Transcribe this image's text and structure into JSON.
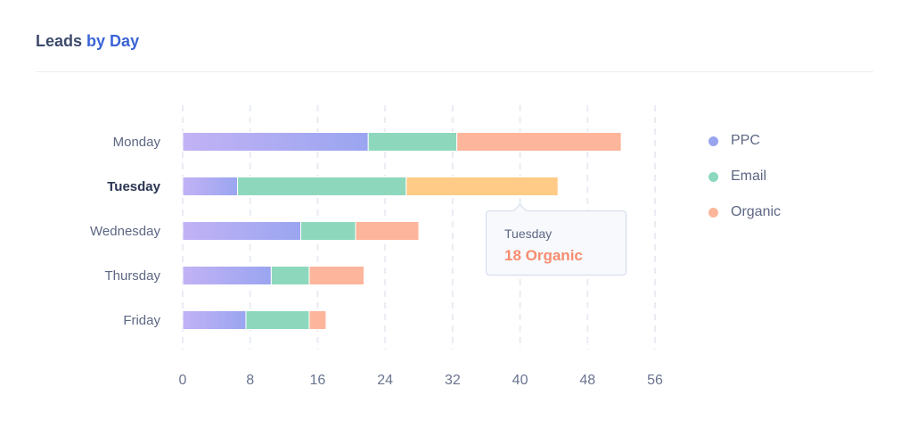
{
  "header": {
    "title_prefix": "Leads",
    "title_suffix": "by Day"
  },
  "colors": {
    "ppc": "#9aa5f0",
    "ppc_start": "#c2b2f5",
    "email": "#8dd8bd",
    "organic": "#fdb59b",
    "organic_highlight": "#ffcb87",
    "axis_text": "#6a7490",
    "label_text": "#5d6783",
    "label_active": "#2b3553",
    "grid": "#e9ecf3"
  },
  "legend": [
    {
      "label": "PPC",
      "color": "#9aa5f0"
    },
    {
      "label": "Email",
      "color": "#8dd8bd"
    },
    {
      "label": "Organic",
      "color": "#fdb59b"
    }
  ],
  "tooltip": {
    "day": "Tuesday",
    "value_text": "18 Organic"
  },
  "chart_data": {
    "type": "bar",
    "orientation": "horizontal",
    "stacked": true,
    "title": "Leads by Day",
    "categories": [
      "Monday",
      "Tuesday",
      "Wednesday",
      "Thursday",
      "Friday"
    ],
    "active_category": "Tuesday",
    "series": [
      {
        "name": "PPC",
        "values": [
          22,
          6.5,
          14,
          10.5,
          7.5
        ]
      },
      {
        "name": "Email",
        "values": [
          10.5,
          20,
          6.5,
          4.5,
          7.5
        ]
      },
      {
        "name": "Organic",
        "values": [
          19.5,
          18,
          7.5,
          6.5,
          2
        ]
      }
    ],
    "xlim": [
      0,
      56
    ],
    "xticks": [
      0,
      8,
      16,
      24,
      32,
      40,
      48,
      56
    ],
    "xlabel": "",
    "ylabel": "",
    "grid": true,
    "legend_position": "right"
  }
}
